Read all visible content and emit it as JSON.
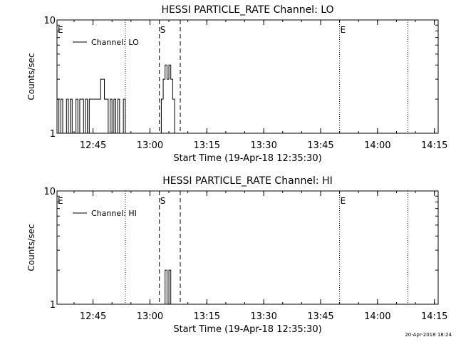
{
  "timestamp": "20-Apr-2018 18:24",
  "chart_data": [
    {
      "type": "line",
      "title": "HESSI PARTICLE_RATE Channel: LO",
      "xlabel": "Start Time (19-Apr-18 12:35:30)",
      "ylabel": "Counts/sec",
      "y_scale": "log",
      "ylim": [
        1,
        10
      ],
      "y_ticks": [
        "1",
        "10"
      ],
      "xlim": [
        "12:35:30",
        "14:16:00"
      ],
      "x_ticks": [
        "12:45",
        "13:00",
        "13:15",
        "13:30",
        "13:45",
        "14:00",
        "14:15"
      ],
      "legend": {
        "position": "top-left",
        "label": "Channel: LO"
      },
      "markers": [
        {
          "time": "12:35:30",
          "style": "dotted",
          "label": "E"
        },
        {
          "time": "12:53:30",
          "style": "dotted",
          "label": ""
        },
        {
          "time": "13:02:30",
          "style": "dashed",
          "label": "S"
        },
        {
          "time": "13:08:00",
          "style": "dashed",
          "label": ""
        },
        {
          "time": "13:50:00",
          "style": "dotted",
          "label": "E"
        },
        {
          "time": "14:08:00",
          "style": "dotted",
          "label": ""
        }
      ],
      "series": [
        {
          "name": "Channel: LO",
          "x": [
            "12:35:30",
            "12:36:00",
            "12:36:30",
            "12:37:00",
            "12:37:30",
            "12:38:00",
            "12:38:30",
            "12:39:00",
            "12:39:30",
            "12:40:00",
            "12:40:30",
            "12:41:00",
            "12:41:30",
            "12:42:00",
            "12:42:30",
            "12:43:00",
            "12:43:30",
            "12:44:00",
            "12:44:30",
            "12:45:00",
            "12:45:30",
            "12:46:00",
            "12:46:30",
            "12:47:00",
            "12:47:30",
            "12:48:00",
            "12:48:30",
            "12:49:00",
            "12:49:30",
            "12:50:00",
            "12:50:30",
            "12:51:00",
            "12:51:30",
            "12:52:00",
            "12:52:30",
            "12:53:00",
            "12:53:30",
            "13:02:30",
            "13:03:00",
            "13:03:30",
            "13:04:00",
            "13:04:30",
            "13:05:00",
            "13:05:30",
            "13:06:00",
            "13:06:30",
            "13:07:00",
            "13:07:30",
            "13:08:00"
          ],
          "values": [
            2,
            1,
            2,
            1,
            1,
            2,
            1,
            2,
            1,
            1,
            2,
            1,
            2,
            2,
            1,
            2,
            1,
            2,
            2,
            2,
            2,
            2,
            2,
            3,
            3,
            2,
            2,
            1,
            2,
            1,
            2,
            1,
            2,
            1,
            1,
            2,
            1,
            1,
            2,
            3,
            4,
            3,
            4,
            3,
            2,
            1,
            1,
            1,
            1
          ]
        }
      ]
    },
    {
      "type": "line",
      "title": "HESSI PARTICLE_RATE Channel: HI",
      "xlabel": "Start Time (19-Apr-18 12:35:30)",
      "ylabel": "Counts/sec",
      "y_scale": "log",
      "ylim": [
        1,
        10
      ],
      "y_ticks": [
        "1",
        "10"
      ],
      "xlim": [
        "12:35:30",
        "14:16:00"
      ],
      "x_ticks": [
        "12:45",
        "13:00",
        "13:15",
        "13:30",
        "13:45",
        "14:00",
        "14:15"
      ],
      "legend": {
        "position": "top-left",
        "label": "Channel: HI"
      },
      "markers": [
        {
          "time": "12:35:30",
          "style": "dotted",
          "label": "E"
        },
        {
          "time": "12:53:30",
          "style": "dotted",
          "label": ""
        },
        {
          "time": "13:02:30",
          "style": "dashed",
          "label": "S"
        },
        {
          "time": "13:08:00",
          "style": "dashed",
          "label": ""
        },
        {
          "time": "13:50:00",
          "style": "dotted",
          "label": "E"
        },
        {
          "time": "14:08:00",
          "style": "dotted",
          "label": ""
        }
      ],
      "series": [
        {
          "name": "Channel: HI",
          "x": [
            "13:02:30",
            "13:03:30",
            "13:04:00",
            "13:04:30",
            "13:05:00",
            "13:05:30",
            "13:06:00",
            "13:06:30",
            "13:08:00"
          ],
          "values": [
            1,
            1,
            2,
            1,
            2,
            1,
            1,
            1,
            1
          ]
        }
      ]
    }
  ]
}
